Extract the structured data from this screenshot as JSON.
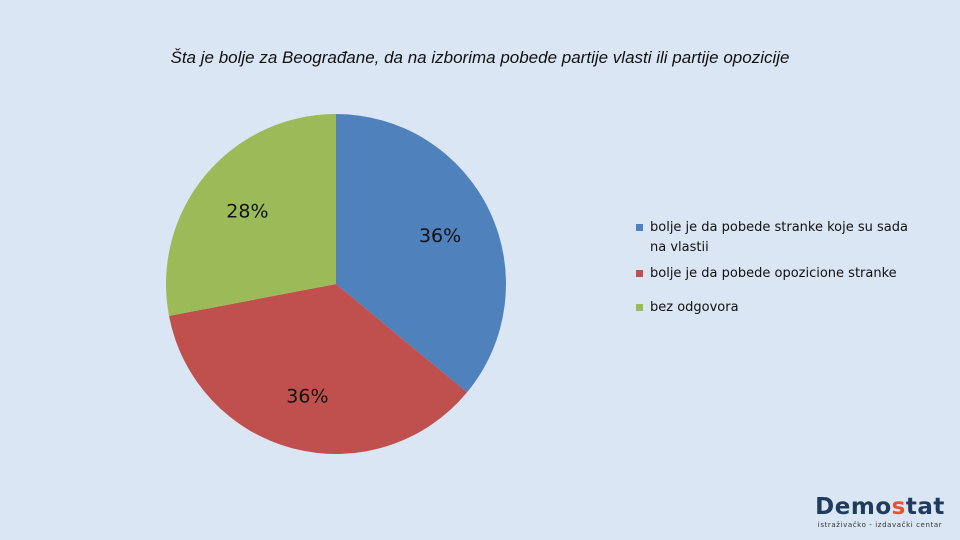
{
  "chart_data": {
    "type": "pie",
    "title": "Šta je bolje za Beograđane, da na izborima pobede partije vlasti ili partije opozicije",
    "series": [
      {
        "name": "bolje je da pobede stranke koje su sada na vlastii",
        "value": 36,
        "label": "36%",
        "color": "#4f81bd"
      },
      {
        "name": "bolje je da pobede opozicione stranke",
        "value": 36,
        "label": "36%",
        "color": "#c0504d"
      },
      {
        "name": "bez odgovora",
        "value": 28,
        "label": "28%",
        "color": "#9bbb59"
      }
    ],
    "legend_position": "right"
  },
  "logo": {
    "name_main": "Demo",
    "name_accent": "s",
    "name_end": "tat",
    "tagline": "istraživačko - izdavački centar"
  }
}
